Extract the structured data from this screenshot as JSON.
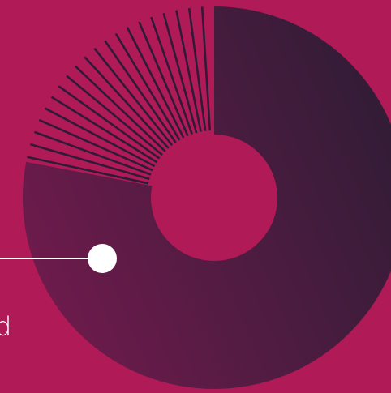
{
  "chart_data": {
    "type": "pie",
    "style": "donut",
    "slices": [
      {
        "kind": "solid",
        "value": 78,
        "color_start": "#6e1b4c",
        "color_end": "#2f1c35"
      },
      {
        "kind": "hatched",
        "value": 22,
        "line_color": "#2f1b38"
      }
    ],
    "callout": {
      "label": "d",
      "line_color": "#ffffff",
      "dot_color": "#ffffff"
    },
    "background_color": "#b01a57",
    "hole_color": "#b01a57"
  }
}
